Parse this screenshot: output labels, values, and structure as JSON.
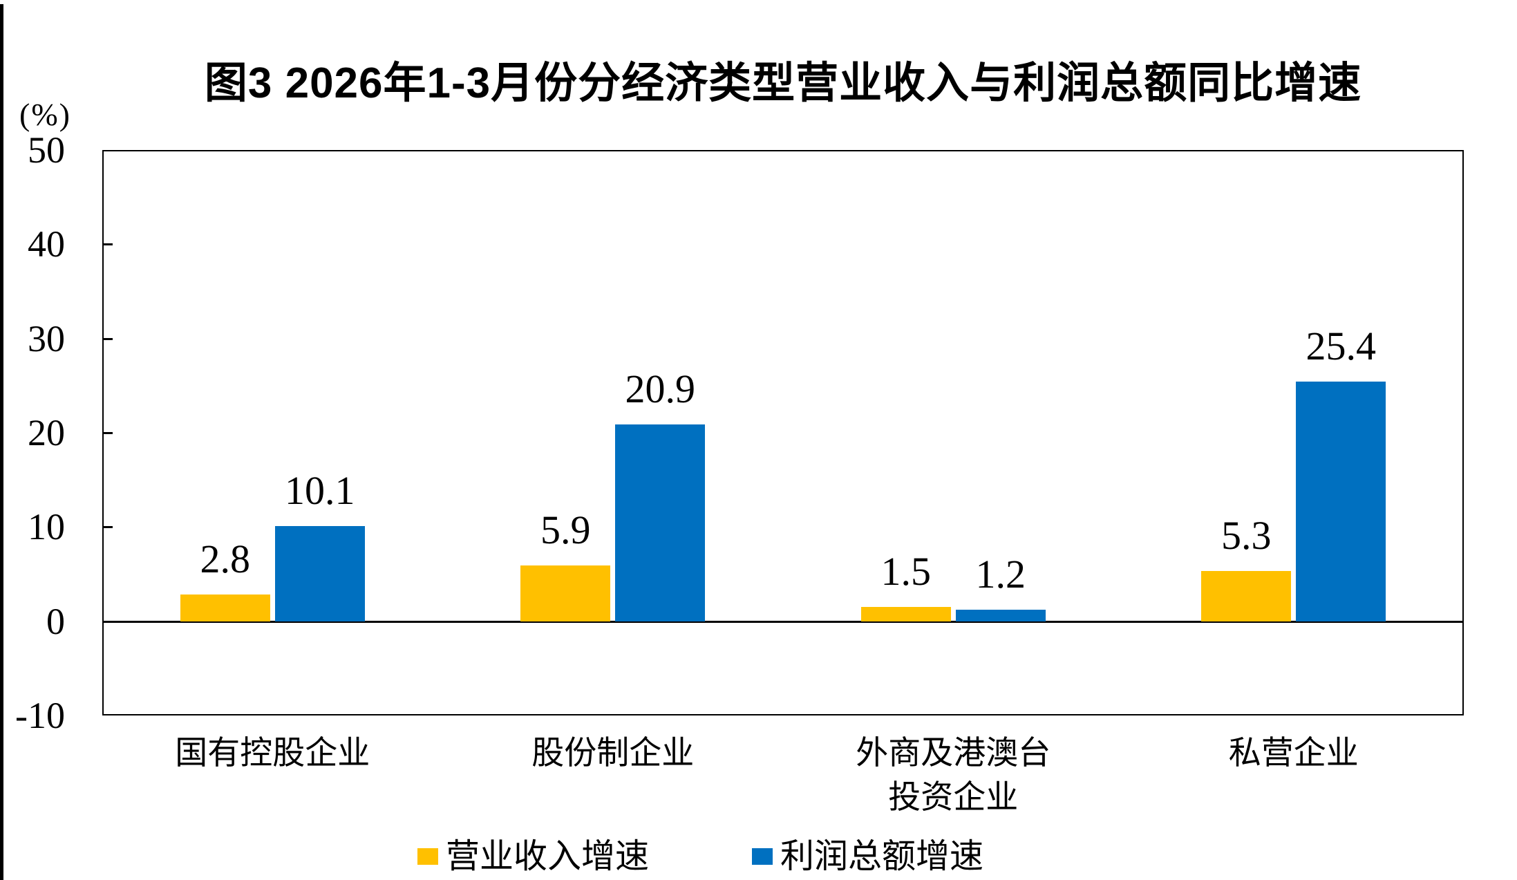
{
  "chart_data": {
    "type": "bar",
    "title": "图3  2026年1-3月份分经济类型营业收入与利润总额同比增速",
    "ylabel": "(%)",
    "categories": [
      "国有控股企业",
      "股份制企业",
      "外商及港澳台\n投资企业",
      "私营企业"
    ],
    "series": [
      {
        "name": "营业收入增速",
        "color": "#FFC000",
        "values": [
          2.8,
          5.9,
          1.5,
          5.3
        ]
      },
      {
        "name": "利润总额增速",
        "color": "#0070C0",
        "values": [
          10.1,
          20.9,
          1.2,
          25.4
        ]
      }
    ],
    "ylim": [
      -10,
      50
    ],
    "y_ticks": [
      50,
      40,
      30,
      20,
      10,
      0,
      -10
    ],
    "grid": "zero-baseline-only",
    "legend_position": "bottom",
    "value_labels": true,
    "value_label_texts": [
      [
        "2.8",
        "5.9",
        "1.5",
        "5.3"
      ],
      [
        "10.1",
        "20.9",
        "1.2",
        "25.4"
      ]
    ]
  },
  "legend": [
    {
      "label": "营业收入增速",
      "color": "#FFC000"
    },
    {
      "label": "利润总额增速",
      "color": "#0070C0"
    }
  ],
  "colors": {
    "revenue_bar": "#FFC000",
    "profit_bar": "#0070C0",
    "axis": "#000000",
    "background": "#FFFFFF"
  }
}
